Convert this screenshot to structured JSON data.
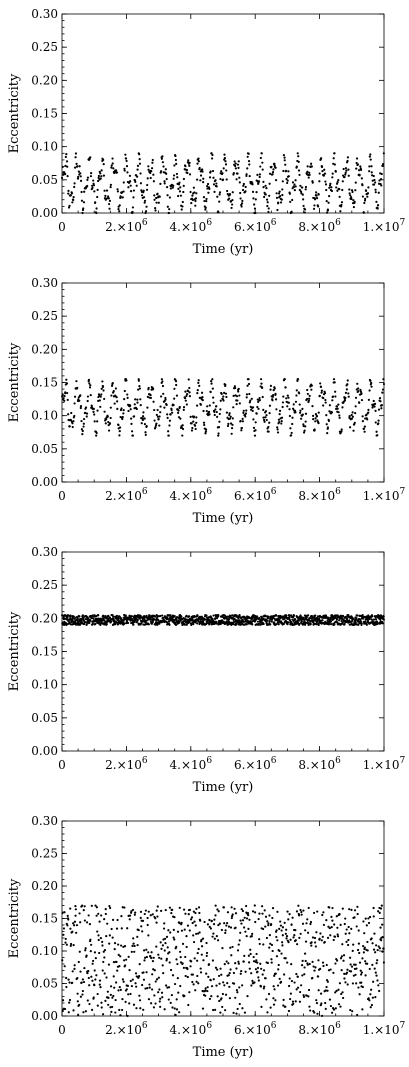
{
  "chart_data": [
    {
      "type": "scatter",
      "title": "",
      "xlabel": "Time (yr)",
      "ylabel": "Eccentricity",
      "xlim": [
        0,
        10000000
      ],
      "ylim": [
        0,
        0.3
      ],
      "grid": false,
      "legend": "none",
      "marker_color": "#000000",
      "y_ticks": [
        "0.00",
        "0.05",
        "0.10",
        "0.15",
        "0.20",
        "0.25",
        "0.30"
      ],
      "y_tick_values": [
        0,
        0.05,
        0.1,
        0.15,
        0.2,
        0.25,
        0.3
      ],
      "x_tick_values": [
        0,
        2000000,
        4000000,
        6000000,
        8000000,
        10000000
      ],
      "x_tick_mantissa": [
        "0",
        "2.×10",
        "4.×10",
        "6.×10",
        "8.×10",
        "1.×10"
      ],
      "x_tick_exponent": [
        "",
        "6",
        "6",
        "6",
        "6",
        "7"
      ],
      "pattern": "oscillating",
      "y_range": [
        0.0,
        0.09
      ],
      "oscillation_period_yr": 380000,
      "n_points": 700
    },
    {
      "type": "scatter",
      "title": "",
      "xlabel": "Time (yr)",
      "ylabel": "Eccentricity",
      "xlim": [
        0,
        10000000
      ],
      "ylim": [
        0,
        0.3
      ],
      "grid": false,
      "legend": "none",
      "marker_color": "#000000",
      "y_ticks": [
        "0.00",
        "0.05",
        "0.10",
        "0.15",
        "0.20",
        "0.25",
        "0.30"
      ],
      "y_tick_values": [
        0,
        0.05,
        0.1,
        0.15,
        0.2,
        0.25,
        0.3
      ],
      "x_tick_values": [
        0,
        2000000,
        4000000,
        6000000,
        8000000,
        10000000
      ],
      "x_tick_mantissa": [
        "0",
        "2.×10",
        "4.×10",
        "6.×10",
        "8.×10",
        "1.×10"
      ],
      "x_tick_exponent": [
        "",
        "6",
        "6",
        "6",
        "6",
        "7"
      ],
      "pattern": "oscillating",
      "y_range": [
        0.07,
        0.155
      ],
      "oscillation_period_yr": 380000,
      "n_points": 700
    },
    {
      "type": "scatter",
      "title": "",
      "xlabel": "Time (yr)",
      "ylabel": "Eccentricity",
      "xlim": [
        0,
        10000000
      ],
      "ylim": [
        0,
        0.3
      ],
      "grid": false,
      "legend": "none",
      "marker_color": "#000000",
      "y_ticks": [
        "0.00",
        "0.05",
        "0.10",
        "0.15",
        "0.20",
        "0.25",
        "0.30"
      ],
      "y_tick_values": [
        0,
        0.05,
        0.1,
        0.15,
        0.2,
        0.25,
        0.3
      ],
      "x_tick_values": [
        0,
        2000000,
        4000000,
        6000000,
        8000000,
        10000000
      ],
      "x_tick_mantissa": [
        "0",
        "2.×10",
        "4.×10",
        "6.×10",
        "8.×10",
        "1.×10"
      ],
      "x_tick_exponent": [
        "",
        "6",
        "6",
        "6",
        "6",
        "7"
      ],
      "pattern": "band",
      "y_range": [
        0.19,
        0.205
      ],
      "oscillation_period_yr": 60000,
      "n_points": 1400
    },
    {
      "type": "scatter",
      "title": "",
      "xlabel": "Time (yr)",
      "ylabel": "Eccentricity",
      "xlim": [
        0,
        10000000
      ],
      "ylim": [
        0,
        0.3
      ],
      "grid": false,
      "legend": "none",
      "marker_color": "#000000",
      "y_ticks": [
        "0.00",
        "0.05",
        "0.10",
        "0.15",
        "0.20",
        "0.25",
        "0.30"
      ],
      "y_tick_values": [
        0,
        0.05,
        0.1,
        0.15,
        0.2,
        0.25,
        0.3
      ],
      "x_tick_values": [
        0,
        2000000,
        4000000,
        6000000,
        8000000,
        10000000
      ],
      "x_tick_mantissa": [
        "0",
        "2.×10",
        "4.×10",
        "6.×10",
        "8.×10",
        "1.×10"
      ],
      "x_tick_exponent": [
        "",
        "6",
        "6",
        "6",
        "6",
        "7"
      ],
      "pattern": "sparse",
      "y_range": [
        0.0,
        0.17
      ],
      "oscillation_period_yr": 240000,
      "n_points": 1000
    }
  ]
}
